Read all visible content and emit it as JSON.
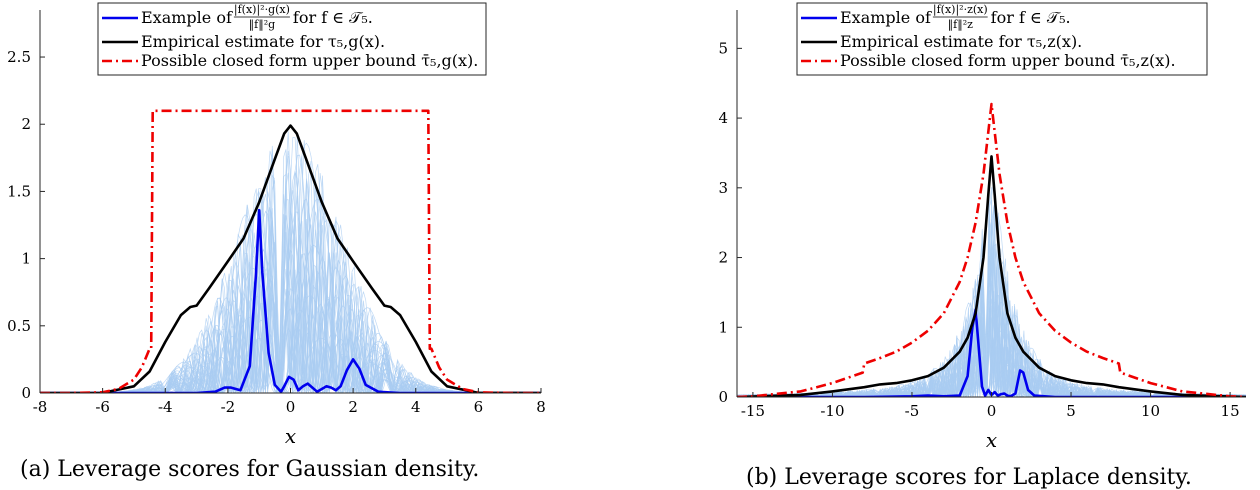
{
  "chart_data": [
    {
      "type": "line",
      "caption": "(a) Leverage scores for Gaussian density.",
      "xlabel": "x",
      "ylabel": "",
      "xlim": [
        -8,
        8
      ],
      "ylim": [
        0,
        2.85
      ],
      "xticks": [
        -8,
        -6,
        -4,
        -2,
        0,
        2,
        4,
        6,
        8
      ],
      "xtick_labels": [
        "-8",
        "-6",
        "-4",
        "-2",
        "0",
        "2",
        "4",
        "6",
        "8"
      ],
      "yticks": [
        0,
        0.5,
        1,
        1.5,
        2,
        2.5
      ],
      "ytick_labels": [
        "0",
        "0.5",
        "1",
        "1.5",
        "2",
        "2.5"
      ],
      "legend_position": "top-right",
      "legend": [
        {
          "prefix": "Example of ",
          "frac_num": "|f(x)|²·g(x)",
          "frac_den": "‖f‖²g",
          "suffix": " for f ∈ 𝒯₅."
        },
        {
          "text": "Empirical estimate for τ₅,g(x)."
        },
        {
          "text": "Possible closed form upper bound τ̄₅,g(x)."
        }
      ],
      "series": [
        {
          "name": "Example",
          "color": "#0000ee",
          "style": "solid",
          "x": [
            -8,
            -3,
            -2.4,
            -2.1,
            -1.9,
            -1.6,
            -1.3,
            -1.1,
            -1.0,
            -0.9,
            -0.7,
            -0.5,
            -0.3,
            -0.2,
            -0.05,
            0.1,
            0.25,
            0.4,
            0.55,
            0.7,
            0.85,
            1.0,
            1.15,
            1.3,
            1.45,
            1.6,
            1.8,
            2.0,
            2.2,
            2.4,
            2.8,
            3.5,
            8
          ],
          "y": [
            0,
            0,
            0.01,
            0.04,
            0.04,
            0.02,
            0.2,
            0.9,
            1.36,
            0.9,
            0.3,
            0.06,
            0.01,
            0.05,
            0.12,
            0.1,
            0.02,
            0.05,
            0.07,
            0.04,
            0.01,
            0.03,
            0.05,
            0.04,
            0.02,
            0.05,
            0.17,
            0.25,
            0.18,
            0.06,
            0.01,
            0,
            0
          ]
        },
        {
          "name": "Empirical estimate",
          "color": "#000000",
          "style": "solid",
          "x": [
            -8,
            -6,
            -5,
            -4.5,
            -4,
            -3.5,
            -3.2,
            -3.0,
            -2.6,
            -2.0,
            -1.5,
            -1.0,
            -0.5,
            -0.2,
            0,
            0.2,
            0.5,
            1.0,
            1.5,
            2.0,
            2.6,
            3.0,
            3.2,
            3.5,
            4,
            4.5,
            5,
            6,
            8
          ],
          "y": [
            0,
            0.001,
            0.05,
            0.16,
            0.38,
            0.58,
            0.64,
            0.65,
            0.78,
            0.98,
            1.15,
            1.42,
            1.74,
            1.93,
            1.99,
            1.93,
            1.74,
            1.42,
            1.15,
            0.98,
            0.78,
            0.65,
            0.64,
            0.58,
            0.38,
            0.16,
            0.05,
            0.001,
            0
          ]
        },
        {
          "name": "Closed form upper bound",
          "color": "#ee0000",
          "style": "dashdot",
          "x": [
            -8,
            -7,
            -6,
            -5.5,
            -5,
            -4.75,
            -4.5,
            -4.45,
            -4.4,
            4.4,
            4.45,
            4.5,
            4.75,
            5,
            5.5,
            6,
            7,
            8
          ],
          "y": [
            0,
            0,
            0.005,
            0.03,
            0.1,
            0.19,
            0.33,
            0.33,
            2.1,
            2.1,
            0.33,
            0.33,
            0.19,
            0.1,
            0.03,
            0.005,
            0,
            0
          ]
        }
      ]
    },
    {
      "type": "line",
      "caption": "(b) Leverage scores for Laplace density.",
      "xlabel": "x",
      "ylabel": "",
      "xlim": [
        -16,
        16
      ],
      "ylim": [
        0,
        5.55
      ],
      "xticks": [
        -15,
        -10,
        -5,
        0,
        5,
        10,
        15
      ],
      "xtick_labels": [
        "-15",
        "-10",
        "-5",
        "0",
        "5",
        "10",
        "15"
      ],
      "yticks": [
        0,
        1,
        2,
        3,
        4,
        5
      ],
      "ytick_labels": [
        "0",
        "1",
        "2",
        "3",
        "4",
        "5"
      ],
      "legend_position": "top-right",
      "legend": [
        {
          "prefix": "Example of ",
          "frac_num": "|f(x)|²·z(x)",
          "frac_den": "‖f‖²z",
          "suffix": " for f ∈ 𝒯₅."
        },
        {
          "text": "Empirical estimate for τ₅,z(x)."
        },
        {
          "text": "Possible closed form upper bound τ̄₅,z(x)."
        }
      ],
      "series": [
        {
          "name": "Example",
          "color": "#0000ee",
          "style": "solid",
          "x": [
            -16,
            -8,
            -5,
            -4,
            -3,
            -2,
            -1.5,
            -1.2,
            -1.0,
            -0.8,
            -0.6,
            -0.4,
            -0.2,
            0,
            0.2,
            0.4,
            0.6,
            0.8,
            1.0,
            1.2,
            1.5,
            1.8,
            2.0,
            2.3,
            2.7,
            4,
            16
          ],
          "y": [
            0,
            0,
            0.01,
            0.02,
            0.01,
            0.02,
            0.3,
            1.0,
            1.25,
            0.7,
            0.15,
            0.02,
            0.1,
            0.03,
            0.07,
            0.02,
            0.04,
            0.05,
            0.02,
            0.01,
            0.05,
            0.38,
            0.35,
            0.1,
            0.02,
            0,
            0
          ]
        },
        {
          "name": "Empirical estimate",
          "color": "#000000",
          "style": "solid",
          "x": [
            -16,
            -12,
            -10,
            -8,
            -7,
            -6,
            -5,
            -4,
            -3,
            -2,
            -1.5,
            -1,
            -0.5,
            -0.2,
            0,
            0.2,
            0.5,
            1,
            1.5,
            2,
            3,
            4,
            5,
            6,
            7,
            8,
            10,
            12,
            16
          ],
          "y": [
            0,
            0.03,
            0.08,
            0.14,
            0.18,
            0.2,
            0.24,
            0.3,
            0.42,
            0.65,
            0.85,
            1.2,
            2.0,
            2.9,
            3.45,
            2.9,
            2.0,
            1.2,
            0.85,
            0.65,
            0.42,
            0.3,
            0.24,
            0.2,
            0.18,
            0.14,
            0.08,
            0.03,
            0
          ]
        },
        {
          "name": "Closed form upper bound",
          "color": "#ee0000",
          "style": "dashdot",
          "x": [
            -16,
            -15,
            -12,
            -10,
            -8.1,
            -8,
            -7,
            -6,
            -5,
            -4,
            -3,
            -2,
            -1.5,
            -1,
            -0.5,
            -0.2,
            0,
            0.2,
            0.5,
            1,
            1.5,
            2,
            3,
            4,
            5,
            6,
            7,
            8,
            8.1,
            10,
            12,
            15,
            16
          ],
          "y": [
            0,
            0.01,
            0.08,
            0.2,
            0.35,
            0.48,
            0.56,
            0.65,
            0.78,
            0.95,
            1.2,
            1.65,
            2.0,
            2.5,
            3.2,
            3.8,
            4.2,
            3.8,
            3.2,
            2.5,
            2.0,
            1.65,
            1.2,
            0.95,
            0.78,
            0.65,
            0.56,
            0.48,
            0.35,
            0.2,
            0.08,
            0.01,
            0
          ]
        }
      ]
    }
  ]
}
